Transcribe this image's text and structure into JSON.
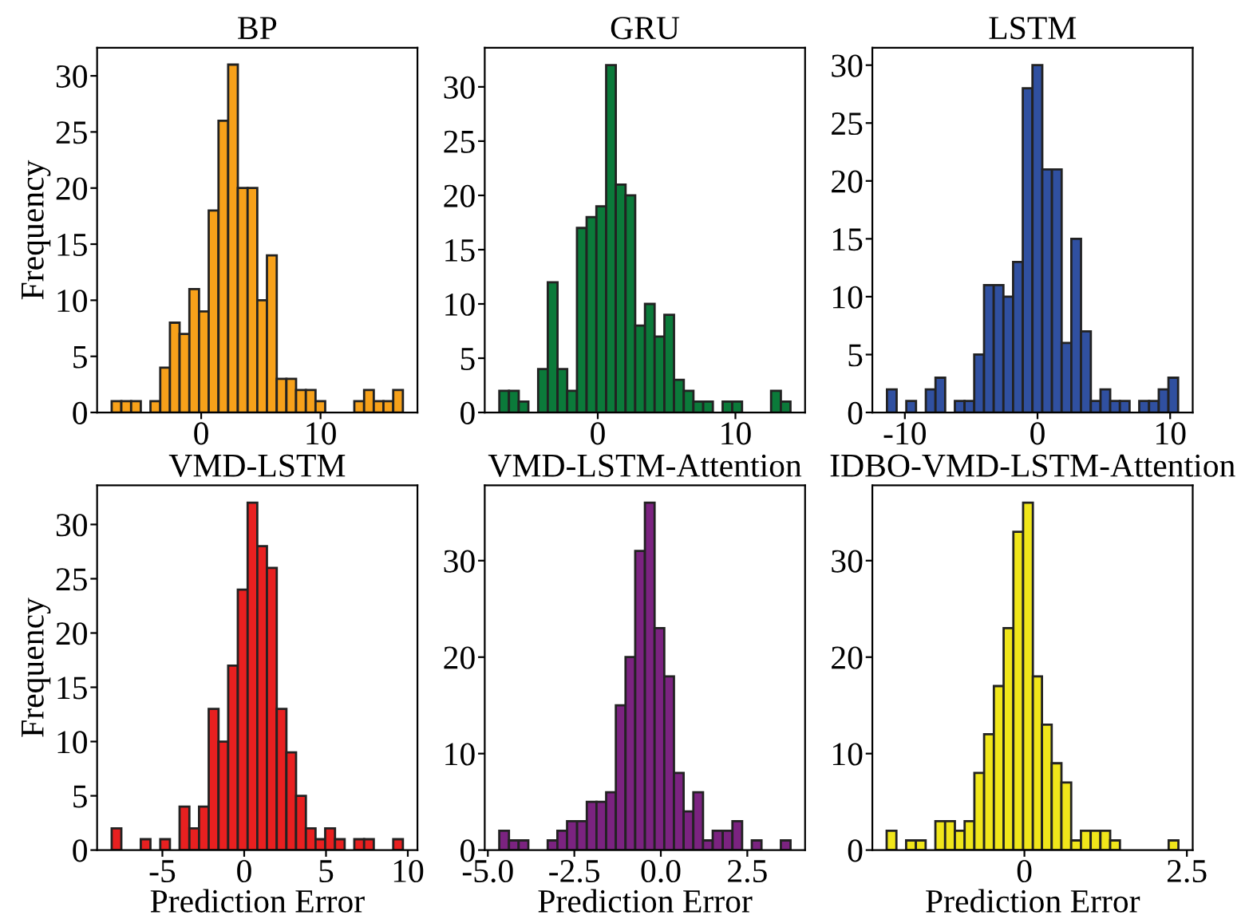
{
  "chart_data": [
    {
      "type": "histogram",
      "title": "BP",
      "ylabel": "Frequency",
      "color": "#f7a11a",
      "bins": [
        -7.5,
        -6.69,
        -5.87,
        -5.06,
        -4.25,
        -3.43,
        -2.62,
        -1.81,
        -0.99,
        -0.18,
        0.63,
        1.45,
        2.26,
        3.07,
        3.89,
        4.7,
        5.51,
        6.33,
        7.14,
        7.95,
        8.77,
        9.58,
        10.39,
        11.21,
        12.02,
        12.83,
        13.65,
        14.46,
        15.27,
        16.09,
        16.9
      ],
      "values": [
        1,
        1,
        1,
        0,
        1,
        4,
        8,
        7,
        11,
        9,
        18,
        26,
        31,
        20,
        20,
        10,
        14,
        3,
        3,
        2,
        2,
        1,
        0,
        0,
        0,
        1,
        2,
        1,
        1,
        2
      ],
      "xlim": [
        -8.72,
        18.12
      ],
      "ylim": [
        0,
        32.5
      ],
      "xticks": [
        0,
        10
      ],
      "yticks": [
        0,
        5,
        10,
        15,
        20,
        25,
        30
      ]
    },
    {
      "type": "histogram",
      "title": "GRU",
      "color": "#0b7a3a",
      "bins": [
        -7.15,
        -6.45,
        -5.74,
        -5.04,
        -4.33,
        -3.63,
        -2.92,
        -2.22,
        -1.51,
        -0.81,
        -0.1,
        0.61,
        1.31,
        2.02,
        2.72,
        3.43,
        4.13,
        4.84,
        5.54,
        6.25,
        6.95,
        7.66,
        8.36,
        9.07,
        9.77,
        10.48,
        11.18,
        11.89,
        12.59,
        13.3,
        14.0
      ],
      "values": [
        2,
        2,
        1,
        0,
        4,
        12,
        4,
        2,
        17,
        18,
        19,
        32,
        21,
        20,
        8,
        10,
        7,
        9,
        3,
        2,
        1,
        1,
        0,
        1,
        1,
        0,
        0,
        0,
        2,
        1
      ],
      "xlim": [
        -8.21,
        15.06
      ],
      "ylim": [
        0,
        33.6
      ],
      "xticks": [
        0,
        10
      ],
      "yticks": [
        0,
        5,
        10,
        15,
        20,
        25,
        30
      ]
    },
    {
      "type": "histogram",
      "title": "LSTM",
      "color": "#3050a0",
      "bins": [
        -11.35,
        -10.62,
        -9.89,
        -9.16,
        -8.42,
        -7.69,
        -6.96,
        -6.23,
        -5.5,
        -4.77,
        -4.03,
        -3.3,
        -2.57,
        -1.84,
        -1.11,
        -0.38,
        0.36,
        1.09,
        1.82,
        2.55,
        3.28,
        4.02,
        4.75,
        5.48,
        6.21,
        6.94,
        7.67,
        8.41,
        9.14,
        9.87,
        10.6
      ],
      "values": [
        2,
        0,
        1,
        0,
        2,
        3,
        0,
        1,
        1,
        5,
        11,
        11,
        10,
        13,
        28,
        30,
        21,
        21,
        6,
        15,
        7,
        1,
        2,
        1,
        1,
        0,
        1,
        1,
        2,
        3
      ],
      "xlim": [
        -12.45,
        11.7
      ],
      "ylim": [
        0,
        31.5
      ],
      "xticks": [
        -10,
        0,
        10
      ],
      "yticks": [
        0,
        5,
        10,
        15,
        20,
        25,
        30
      ]
    },
    {
      "type": "histogram",
      "title": "VMD-LSTM",
      "ylabel": "Frequency",
      "xlabel": "Prediction Error",
      "color": "#e82020",
      "bins": [
        -8.1,
        -7.51,
        -6.91,
        -6.32,
        -5.73,
        -5.13,
        -4.54,
        -3.95,
        -3.35,
        -2.76,
        -2.17,
        -1.57,
        -0.98,
        -0.39,
        0.21,
        0.8,
        1.39,
        1.99,
        2.58,
        3.17,
        3.77,
        4.36,
        4.95,
        5.55,
        6.14,
        6.73,
        7.33,
        7.92,
        8.51,
        9.11,
        9.7
      ],
      "values": [
        2,
        0,
        0,
        1,
        0,
        1,
        0,
        4,
        2,
        4,
        13,
        10,
        17,
        24,
        32,
        28,
        26,
        13,
        9,
        5,
        2,
        1,
        2,
        1,
        0,
        1,
        1,
        0,
        0,
        1
      ],
      "xlim": [
        -8.99,
        10.59
      ],
      "ylim": [
        0,
        33.6
      ],
      "xticks": [
        -5,
        0,
        5,
        10
      ],
      "yticks": [
        0,
        5,
        10,
        15,
        20,
        25,
        30
      ]
    },
    {
      "type": "histogram",
      "title": "VMD-LSTM-Attention",
      "xlabel": "Prediction Error",
      "color": "#7b2380",
      "bins": [
        -4.67,
        -4.39,
        -4.11,
        -3.83,
        -3.55,
        -3.27,
        -2.99,
        -2.71,
        -2.42,
        -2.14,
        -1.86,
        -1.58,
        -1.3,
        -1.02,
        -0.74,
        -0.46,
        -0.18,
        0.1,
        0.38,
        0.66,
        0.94,
        1.22,
        1.5,
        1.79,
        2.07,
        2.35,
        2.63,
        2.91,
        3.19,
        3.47,
        3.75
      ],
      "values": [
        2,
        1,
        1,
        0,
        0,
        1,
        2,
        3,
        3,
        5,
        5,
        6,
        15,
        20,
        31,
        36,
        23,
        18,
        8,
        4,
        6,
        1,
        2,
        2,
        3,
        0,
        1,
        0,
        0,
        1
      ],
      "xlim": [
        -5.09,
        4.17
      ],
      "ylim": [
        0,
        37.8
      ],
      "xticks": [
        {
          "value": -5,
          "label": "-5.0"
        },
        -2.5,
        {
          "value": 0,
          "label": "0.0"
        },
        2.5
      ],
      "yticks": [
        0,
        10,
        20,
        30
      ]
    },
    {
      "type": "histogram",
      "title": "IDBO-VMD-LSTM-Attention",
      "xlabel": "Prediction Error",
      "color": "#f0e61a",
      "bins": [
        -2.12,
        -1.97,
        -1.82,
        -1.67,
        -1.52,
        -1.37,
        -1.22,
        -1.07,
        -0.92,
        -0.77,
        -0.62,
        -0.47,
        -0.32,
        -0.17,
        -0.02,
        0.13,
        0.27,
        0.42,
        0.57,
        0.72,
        0.87,
        1.02,
        1.17,
        1.32,
        1.47,
        2.22,
        2.37
      ],
      "values": [
        2,
        0,
        1,
        1,
        0,
        3,
        3,
        2,
        3,
        8,
        12,
        17,
        23,
        33,
        36,
        18,
        13,
        9,
        7,
        1,
        2,
        2,
        2,
        1,
        0,
        1
      ],
      "xlim": [
        -2.34,
        2.59
      ],
      "ylim": [
        0,
        37.8
      ],
      "xticks": [
        0,
        2.5
      ],
      "yticks": [
        0,
        10,
        20,
        30
      ]
    }
  ]
}
